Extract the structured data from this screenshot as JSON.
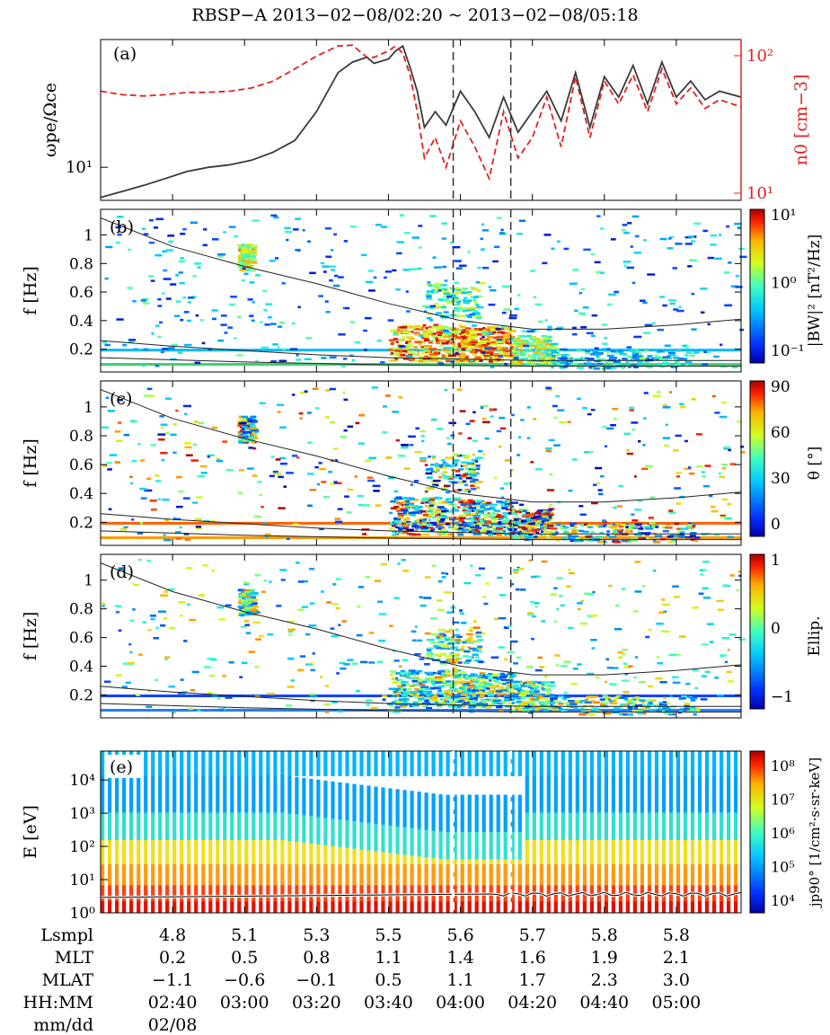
{
  "title": "RBSP−A 2013−02−08/02:20 ~ 2013−02−08/05:18",
  "chart_data": [
    {
      "panel": "a",
      "type": "line",
      "label": "(a)",
      "ylabel_left": "ωpe/Ωce",
      "ylabel_right": "n0 [cm−3]",
      "left_ticks": [
        "10¹"
      ],
      "right_ticks": [
        "10²",
        "10¹"
      ],
      "x_range": [
        "02:20",
        "05:18"
      ],
      "series": [
        {
          "color": "#3a3a3a",
          "style": "solid",
          "x_min": [
            0,
            6,
            12,
            18,
            24,
            30,
            36,
            42,
            48,
            54,
            60,
            66,
            70,
            74,
            76,
            80,
            82,
            84,
            86,
            88,
            90,
            93,
            96,
            100,
            104,
            108,
            112,
            116,
            120,
            124,
            128,
            132,
            136,
            140,
            144,
            148,
            152,
            156,
            160,
            164,
            168,
            172,
            178
          ],
          "y": [
            5.5,
            6.2,
            7.0,
            8.0,
            9.2,
            10.0,
            10.5,
            11.5,
            13.5,
            17,
            30,
            65,
            80,
            88,
            78,
            85,
            100,
            110,
            72,
            45,
            22,
            30,
            23,
            45,
            30,
            18,
            40,
            20,
            30,
            45,
            25,
            65,
            22,
            60,
            40,
            75,
            35,
            80,
            40,
            55,
            38,
            45,
            40
          ]
        },
        {
          "color": "#e02020",
          "style": "dashed",
          "x_min": [
            0,
            6,
            12,
            18,
            24,
            30,
            36,
            42,
            48,
            54,
            60,
            66,
            70,
            74,
            76,
            80,
            82,
            84,
            86,
            88,
            90,
            93,
            96,
            100,
            104,
            108,
            112,
            116,
            120,
            124,
            128,
            132,
            136,
            140,
            144,
            148,
            152,
            156,
            160,
            164,
            168,
            172,
            178
          ],
          "y": [
            45,
            42,
            41,
            42,
            44,
            44,
            45,
            48,
            55,
            70,
            90,
            110,
            112,
            88,
            88,
            100,
            110,
            95,
            62,
            30,
            12,
            18,
            10,
            25,
            15,
            8,
            30,
            12,
            18,
            40,
            15,
            60,
            18,
            55,
            35,
            62,
            30,
            70,
            35,
            48,
            32,
            38,
            33
          ]
        }
      ]
    },
    {
      "panel": "b",
      "type": "heatmap",
      "label": "(b)",
      "ylabel": "f [Hz]",
      "yticks": [
        "0.2",
        "0.4",
        "0.6",
        "0.8",
        "1"
      ],
      "colorbar_label": "|BW|² [nT²/Hz]",
      "colorbar_ticks": [
        "10¹",
        "10⁰",
        "10⁻¹"
      ]
    },
    {
      "panel": "c",
      "type": "heatmap",
      "label": "(c)",
      "ylabel": "f [Hz]",
      "yticks": [
        "0.2",
        "0.4",
        "0.6",
        "0.8",
        "1"
      ],
      "colorbar_label": "θ [°]",
      "colorbar_ticks": [
        "90",
        "60",
        "30",
        "0"
      ]
    },
    {
      "panel": "d",
      "type": "heatmap",
      "label": "(d)",
      "ylabel": "f [Hz]",
      "yticks": [
        "0.2",
        "0.4",
        "0.6",
        "0.8",
        "1"
      ],
      "colorbar_label": "Ellip.",
      "colorbar_ticks": [
        "1",
        "0",
        "−1"
      ]
    },
    {
      "panel": "e",
      "type": "heatmap",
      "label": "(e)",
      "ylabel": "E [eV]",
      "yticks": [
        "10⁰",
        "10¹",
        "10²",
        "10³",
        "10⁴"
      ],
      "colorbar_label": "jp90° [1/cm²·s·sr·keV]",
      "colorbar_ticks": [
        "10⁸",
        "10⁷",
        "10⁶",
        "10⁵",
        "10⁴"
      ]
    }
  ],
  "vertical_markers_min": [
    98,
    114
  ],
  "time_axis": {
    "tick_min": [
      20,
      40,
      60,
      80,
      100,
      120,
      140,
      160
    ],
    "rows": [
      {
        "label": "Lsmpl",
        "values": [
          "4.8",
          "5.1",
          "5.3",
          "5.5",
          "5.6",
          "5.7",
          "5.8",
          "5.8"
        ]
      },
      {
        "label": "MLT",
        "values": [
          "0.2",
          "0.5",
          "0.8",
          "1.1",
          "1.4",
          "1.6",
          "1.9",
          "2.1"
        ]
      },
      {
        "label": "MLAT",
        "values": [
          "−1.1",
          "−0.6",
          "−0.1",
          "0.5",
          "1.1",
          "1.7",
          "2.3",
          "3.0"
        ]
      },
      {
        "label": "HH:MM",
        "values": [
          "02:40",
          "03:00",
          "03:20",
          "03:40",
          "04:00",
          "04:20",
          "04:40",
          "05:00"
        ]
      },
      {
        "label": "mm/dd",
        "values": [
          "02/08",
          "",
          "",
          "",
          "",
          "",
          "",
          ""
        ]
      }
    ]
  }
}
